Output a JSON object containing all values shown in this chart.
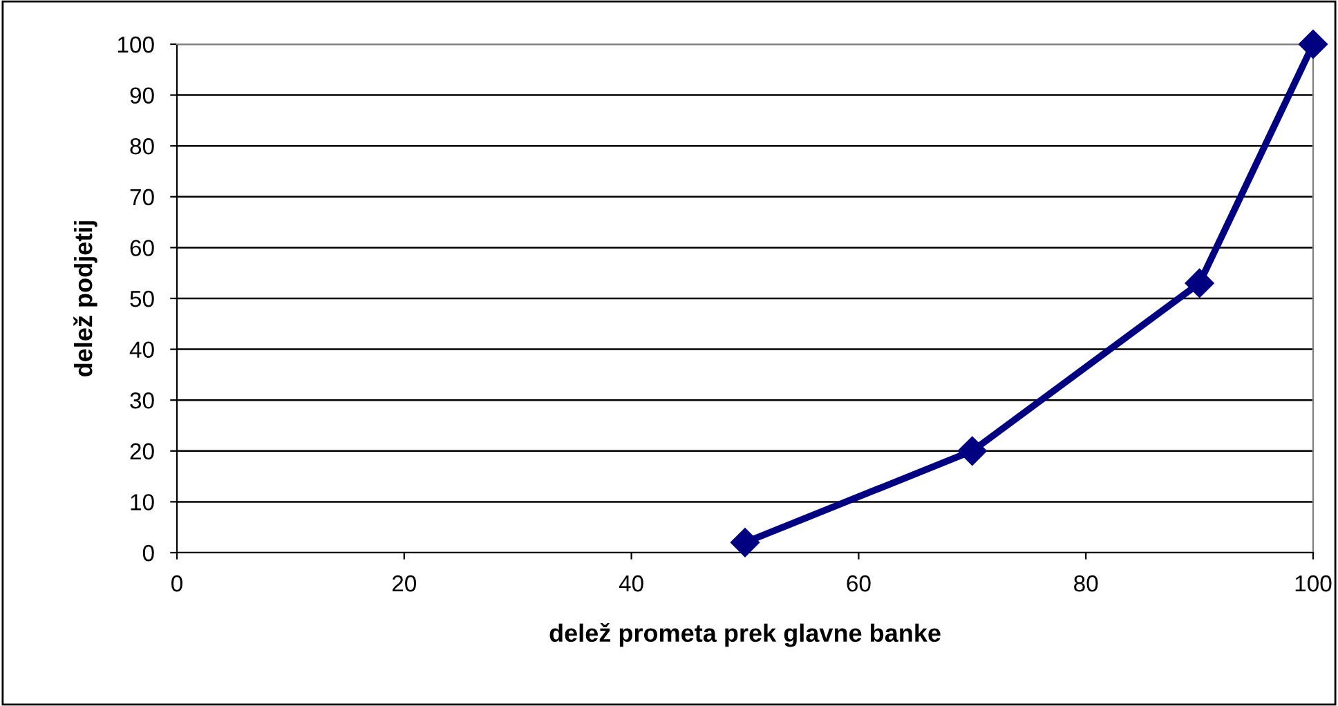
{
  "chart_data": {
    "type": "line",
    "xlabel": "delež prometa prek glavne banke",
    "ylabel": "delež podjetij",
    "x": [
      50,
      70,
      90,
      100
    ],
    "series": [
      {
        "color": "#000080",
        "values": [
          2,
          20,
          53,
          100
        ]
      }
    ],
    "xlim": [
      0,
      100
    ],
    "xticks": [
      0,
      20,
      40,
      60,
      80,
      100
    ],
    "ylim": [
      0,
      100
    ],
    "yticks": [
      0,
      10,
      20,
      30,
      40,
      50,
      60,
      70,
      80,
      90,
      100
    ],
    "grid": "y",
    "marker": "diamond",
    "line_style": "solid",
    "legend": false
  }
}
